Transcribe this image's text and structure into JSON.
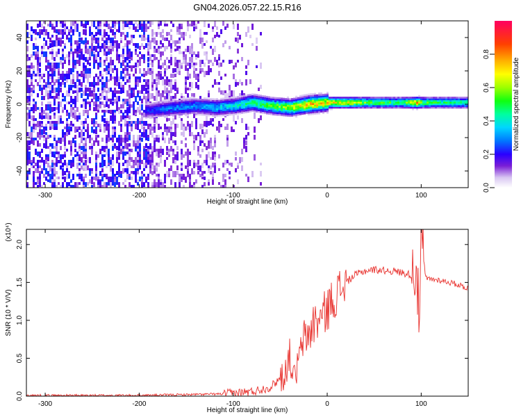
{
  "title": "GN04.2026.057.22.15.R16",
  "chart_data": [
    {
      "type": "heatmap",
      "name": "spectrogram",
      "xlabel": "Height of straight line (km)",
      "ylabel": "Frequency (Hz)",
      "xlim": [
        -320,
        150
      ],
      "ylim": [
        -50,
        50
      ],
      "xticks": [
        -300,
        -200,
        -100,
        0,
        100
      ],
      "xtick_labels": [
        "-300",
        "-200",
        "-100",
        "0",
        "100"
      ],
      "yticks": [
        -40,
        -20,
        0,
        20,
        40
      ],
      "ytick_labels": [
        "-40",
        "-20",
        "0",
        "20",
        "40"
      ],
      "colorbar": {
        "label": "Normalized spectral amplitude",
        "range": [
          0,
          1
        ],
        "ticks": [
          0.0,
          0.2,
          0.4,
          0.6,
          0.8
        ],
        "tick_labels": [
          "0.0",
          "0.2",
          "0.4",
          "0.6",
          "0.8"
        ]
      },
      "signal_track": {
        "x": [
          -195,
          -180,
          -160,
          -140,
          -120,
          -100,
          -80,
          -60,
          -40,
          -20,
          0,
          20,
          50,
          80,
          95,
          100,
          120,
          150
        ],
        "freq": [
          -4,
          -3,
          -2,
          -1,
          -2,
          -1,
          1,
          -1,
          -2,
          0,
          1,
          1,
          1,
          1,
          1,
          1,
          1,
          1
        ],
        "amplitude": [
          0.25,
          0.3,
          0.35,
          0.35,
          0.4,
          0.45,
          0.55,
          0.6,
          0.7,
          0.85,
          0.8,
          0.75,
          0.6,
          0.55,
          0.9,
          0.6,
          0.55,
          0.55
        ]
      },
      "noise_region": {
        "x_range": [
          -320,
          -70
        ],
        "amplitude_range": [
          0.05,
          0.25
        ]
      }
    },
    {
      "type": "line",
      "name": "snr",
      "xlabel": "Height of straight line (km)",
      "ylabel": "SNR (10 * V/V)",
      "y_multiplier": "(x10⁴)",
      "xlim": [
        -320,
        150
      ],
      "ylim": [
        0,
        2.2
      ],
      "xticks": [
        -300,
        -200,
        -100,
        0,
        100
      ],
      "xtick_labels": [
        "-300",
        "-200",
        "-100",
        "0",
        "100"
      ],
      "yticks": [
        0.0,
        0.5,
        1.0,
        1.5,
        2.0
      ],
      "ytick_labels": [
        "0.0",
        "0.5",
        "1.0",
        "1.5",
        "2.0"
      ],
      "color": "#e8302c",
      "x": [
        -320,
        -250,
        -200,
        -150,
        -110,
        -80,
        -60,
        -45,
        -40,
        -35,
        -30,
        -25,
        -20,
        -15,
        -10,
        -5,
        0,
        10,
        20,
        30,
        40,
        50,
        60,
        70,
        80,
        90,
        95,
        98,
        100,
        105,
        120,
        140,
        150
      ],
      "values": [
        0.01,
        0.01,
        0.01,
        0.02,
        0.03,
        0.06,
        0.12,
        0.3,
        0.55,
        0.2,
        0.5,
        0.75,
        0.8,
        0.95,
        1.0,
        1.05,
        1.15,
        1.35,
        1.5,
        1.6,
        1.65,
        1.67,
        1.66,
        1.65,
        1.63,
        1.6,
        1.75,
        0.9,
        2.05,
        1.55,
        1.53,
        1.47,
        1.42
      ],
      "annotations": [
        "spike near 95-100 km reaching ~2.2"
      ]
    }
  ]
}
